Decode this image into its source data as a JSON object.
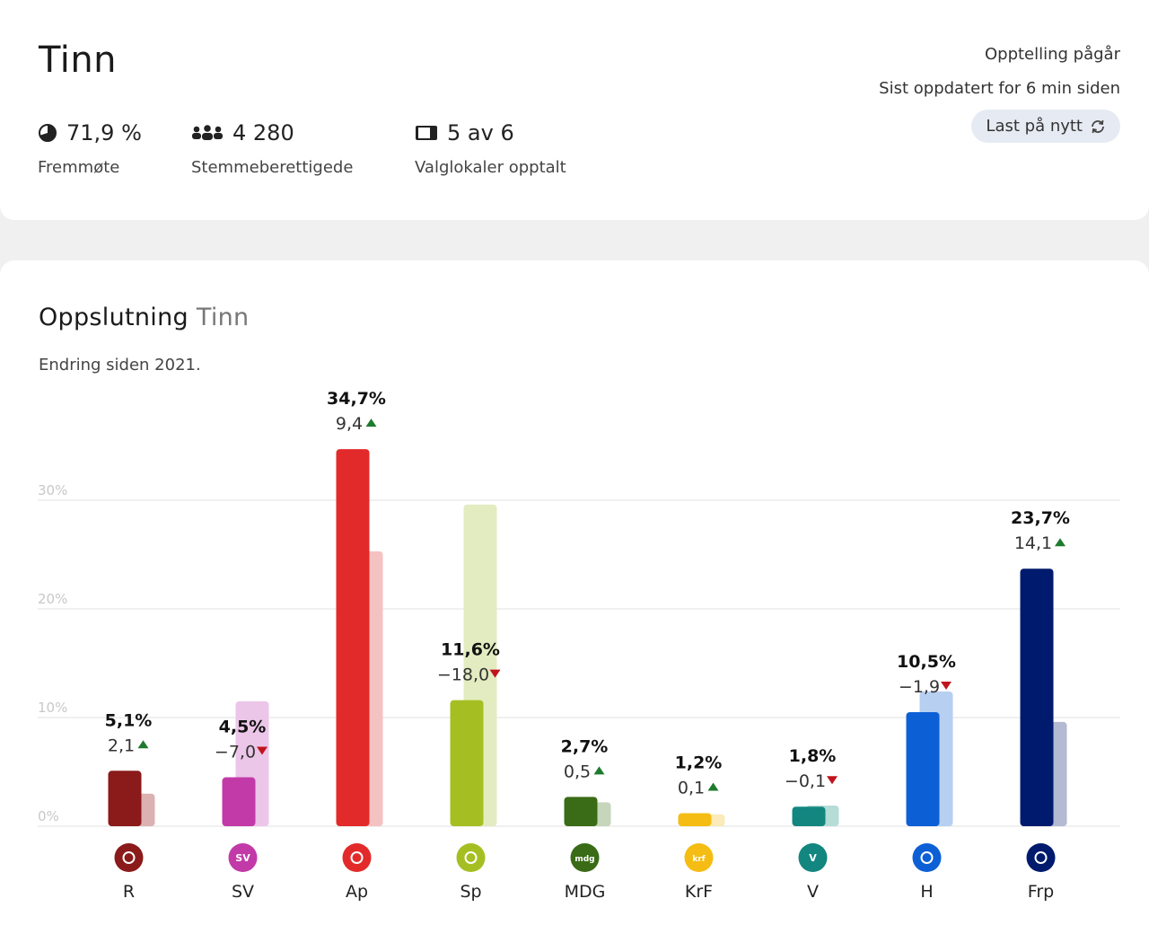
{
  "header": {
    "title": "Tinn",
    "status": "Opptelling pågår",
    "updated": "Sist oppdatert for 6 min siden",
    "reload_label": "Last på nytt"
  },
  "stats": {
    "turnout": {
      "value": "71,9 %",
      "label": "Fremmøte",
      "icon": "pie-icon"
    },
    "eligible": {
      "value": "4 280",
      "label": "Stemmeberettigede",
      "icon": "people-icon"
    },
    "counted": {
      "value": "5 av 6",
      "label": "Valglokaler opptalt",
      "icon": "ballot-box-icon"
    }
  },
  "chart": {
    "title": "Oppslutning",
    "title_place": "Tinn",
    "subtitle": "Endring siden 2021."
  },
  "chart_data": {
    "type": "bar",
    "ylim": [
      0,
      35
    ],
    "y_ticks": [
      0,
      10,
      20,
      30
    ],
    "y_tick_labels": [
      "0%",
      "10%",
      "20%",
      "30%"
    ],
    "grid": true,
    "categories": [
      "R",
      "SV",
      "Ap",
      "Sp",
      "MDG",
      "KrF",
      "V",
      "H",
      "Frp"
    ],
    "series": [
      {
        "values": [
          5.1,
          4.5,
          34.7,
          11.6,
          2.7,
          1.2,
          1.8,
          10.5,
          23.7
        ]
      },
      {
        "values": [
          3.0,
          11.5,
          25.3,
          29.6,
          2.2,
          1.1,
          1.9,
          12.4,
          9.6
        ]
      }
    ],
    "value_labels": [
      "5,1%",
      "4,5%",
      "34,7%",
      "11,6%",
      "2,7%",
      "1,2%",
      "1,8%",
      "10,5%",
      "23,7%"
    ],
    "change_labels": [
      "2,1",
      "−7,0",
      "9,4",
      "−18,0",
      "0,5",
      "0,1",
      "−0,1",
      "−1,9",
      "14,1"
    ],
    "change_direction": [
      "up",
      "down",
      "up",
      "down",
      "up",
      "up",
      "down",
      "down",
      "up"
    ],
    "colors": [
      "#8b1a1a",
      "#c23aa8",
      "#e32a2a",
      "#a5bf22",
      "#3a6b16",
      "#f5bd13",
      "#138680",
      "#0d5fd6",
      "#001a6e"
    ],
    "prev_colors": [
      "#dcb1b1",
      "#ecc6e8",
      "#f5c2c2",
      "#e3ecc0",
      "#c5d6ba",
      "#fbebb8",
      "#b6dcd8",
      "#b7cff1",
      "#b3bad2"
    ],
    "logo_text": [
      "",
      "SV",
      "",
      "",
      "mdg",
      "krf",
      "V",
      "",
      ""
    ],
    "logo_icons": [
      "star-icon",
      "sv-logo-icon",
      "rose-icon",
      "clover-icon",
      "mdg-logo-icon",
      "krf-logo-icon",
      "v-logo-icon",
      "wave-icon",
      "frp-logo-icon"
    ]
  }
}
